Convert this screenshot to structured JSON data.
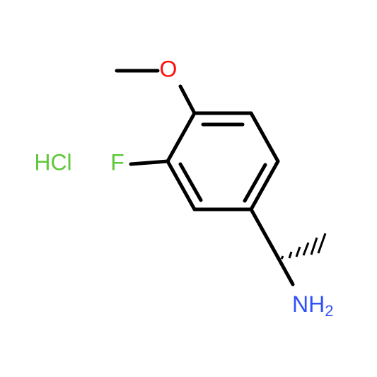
{
  "atoms": [
    {
      "label": "O"
    },
    {
      "label": "F"
    },
    {
      "label": "NH",
      "subscript": "2"
    }
  ],
  "salt": "HCl"
}
